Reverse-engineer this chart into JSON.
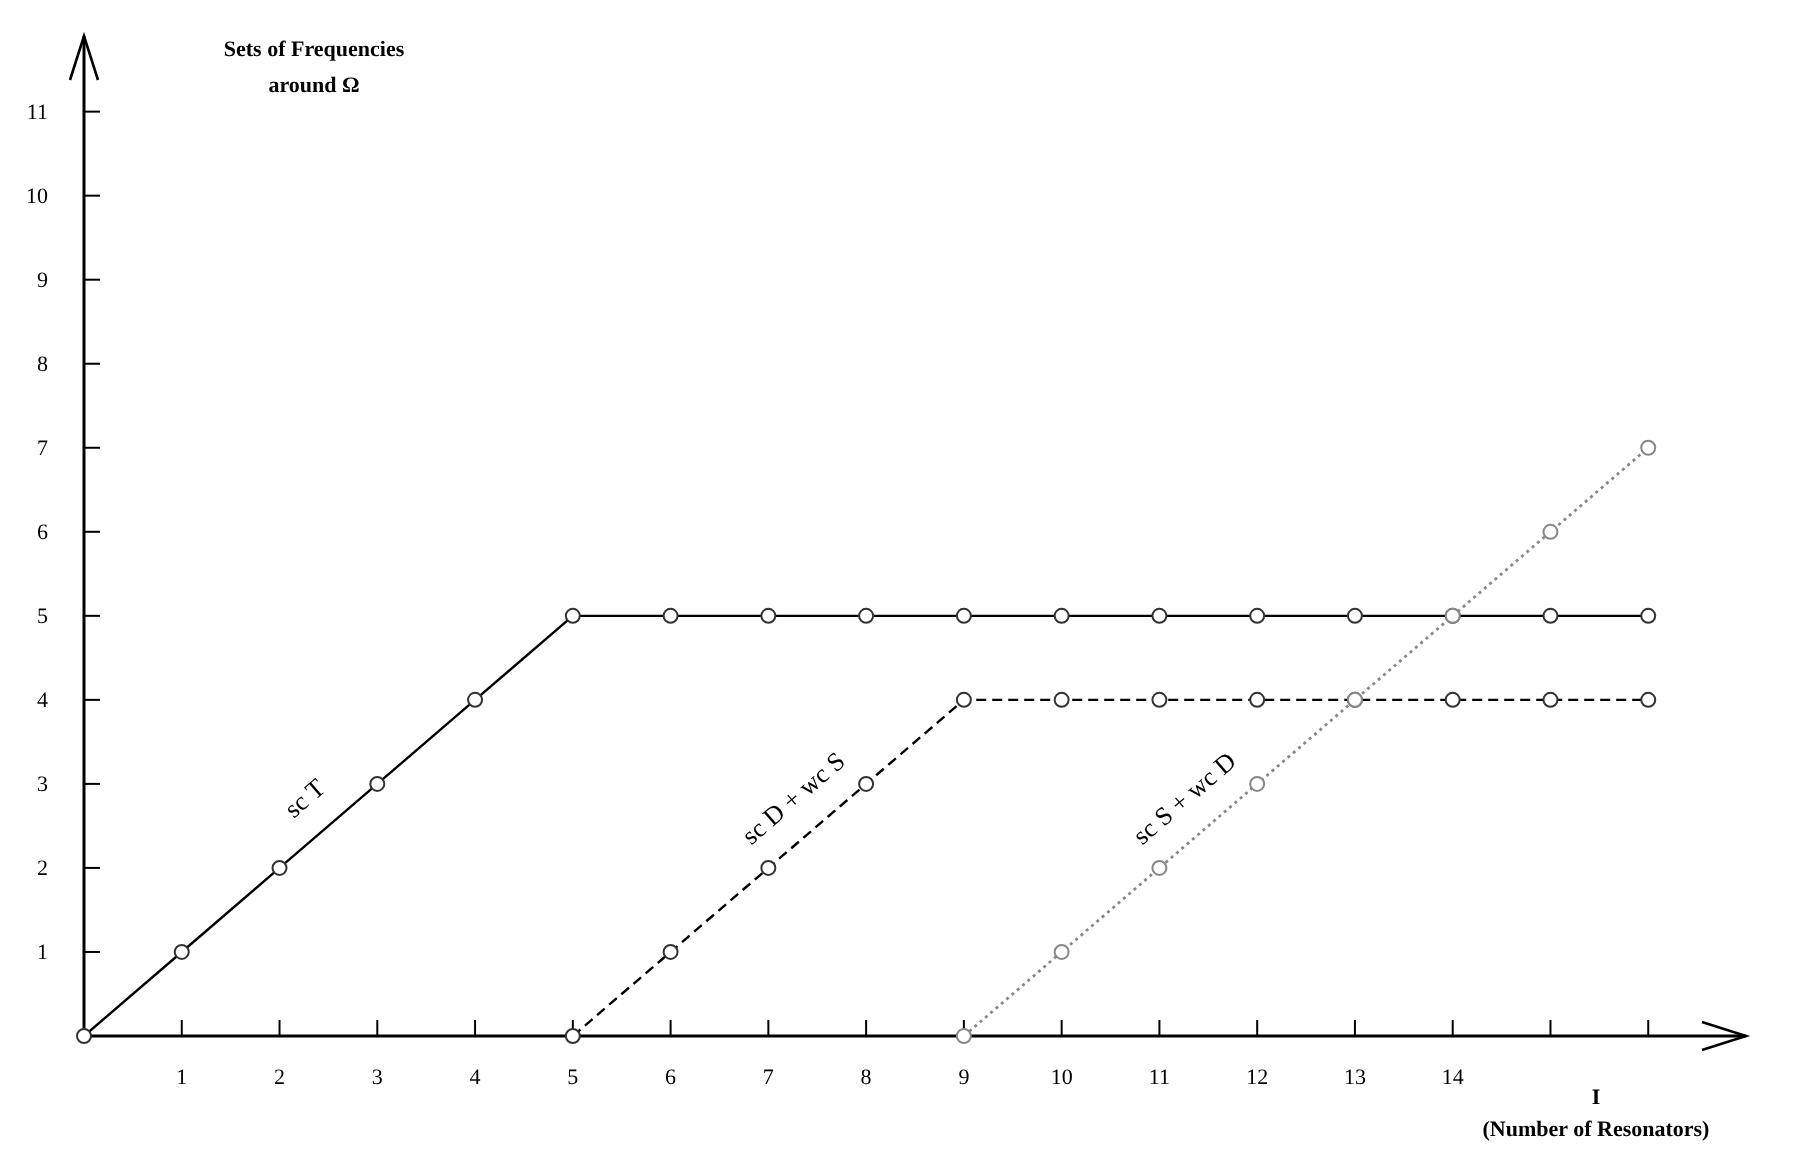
{
  "chart_data": {
    "type": "line",
    "xlabel": "I\n(Number of Resonators)",
    "ylabel": "Sets of Frequencies\naround Ω",
    "xlim": [
      0,
      17
    ],
    "ylim": [
      0,
      11.9
    ],
    "xticks": [
      1,
      2,
      3,
      4,
      5,
      6,
      7,
      8,
      9,
      10,
      11,
      12,
      13,
      14,
      {
        "value": 15,
        "label": null
      },
      {
        "value": 16,
        "label": null
      }
    ],
    "yticks": [
      1,
      2,
      3,
      4,
      5,
      6,
      7,
      8,
      9,
      10,
      11
    ],
    "marker": "circle",
    "grid": false,
    "series": [
      {
        "name": "sc T",
        "color": "#000000",
        "line_style": "solid",
        "x": [
          0,
          1,
          2,
          3,
          4,
          5,
          6,
          7,
          8,
          9,
          10,
          11,
          12,
          13,
          14,
          15,
          16
        ],
        "values": [
          0,
          1,
          2,
          3,
          4,
          5,
          5,
          5,
          5,
          5,
          5,
          5,
          5,
          5,
          5,
          5,
          5
        ]
      },
      {
        "name": "sc D + wc S",
        "color": "#000000",
        "line_style": "dashed",
        "x": [
          5,
          6,
          7,
          8,
          9,
          10,
          11,
          12,
          13,
          14,
          15,
          16
        ],
        "values": [
          0,
          1,
          2,
          3,
          4,
          4,
          4,
          4,
          4,
          4,
          4,
          4
        ]
      },
      {
        "name": "sc S + wc D",
        "color": "#888888",
        "line_style": "dotted",
        "x": [
          9,
          10,
          11,
          12,
          13,
          14,
          15,
          16
        ],
        "values": [
          0,
          1,
          2,
          3,
          4,
          5,
          6,
          7
        ]
      }
    ]
  }
}
